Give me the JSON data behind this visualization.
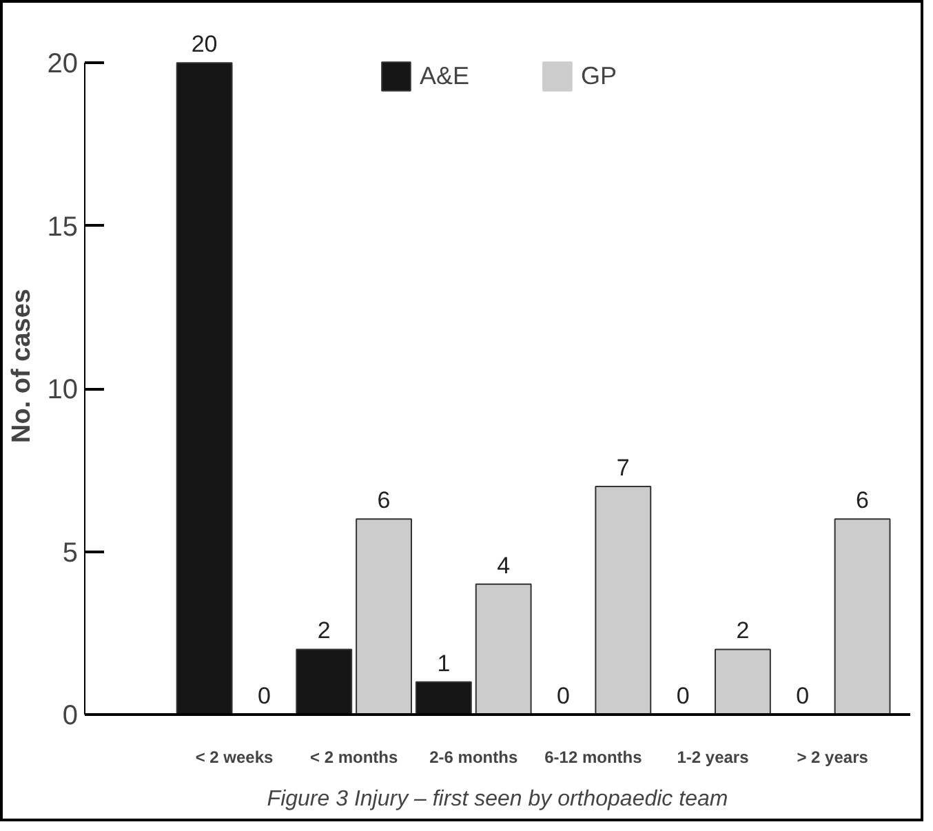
{
  "chart_data": {
    "type": "bar",
    "ylabel": "No. of cases",
    "categories": [
      "< 2 weeks",
      "< 2 months",
      "2-6 months",
      "6-12 months",
      "1-2 years",
      "> 2 years"
    ],
    "series": [
      {
        "name": "A&E",
        "color": "#151515",
        "values": [
          20,
          2,
          1,
          0,
          0,
          0
        ]
      },
      {
        "name": "GP",
        "color": "#cccccc",
        "values": [
          0,
          6,
          4,
          7,
          2,
          6
        ]
      }
    ],
    "ylim": [
      0,
      20
    ],
    "yticks": [
      0,
      5,
      10,
      15,
      20
    ],
    "data_labels": true,
    "legend": "top",
    "grid": false,
    "annotations": [
      "Figure 3 Injury – first seen by orthopaedic team"
    ]
  }
}
